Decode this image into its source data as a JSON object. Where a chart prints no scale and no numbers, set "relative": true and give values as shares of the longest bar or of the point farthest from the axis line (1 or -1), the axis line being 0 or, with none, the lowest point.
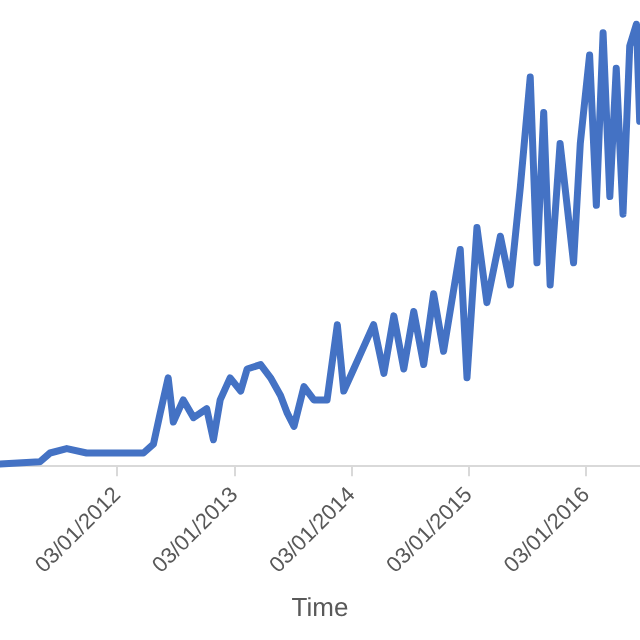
{
  "chart_data": {
    "type": "line",
    "relative": true,
    "xlabel": "Time",
    "grid": false,
    "legend": false,
    "marker": "none",
    "line_style": "solid",
    "xlim": [
      "2011-03-01",
      "2016-08-15"
    ],
    "xticks": [
      {
        "value": "2012-03-01",
        "label": "03/01/2012"
      },
      {
        "value": "2013-03-01",
        "label": "03/01/2013"
      },
      {
        "value": "2014-03-01",
        "label": "03/01/2014"
      },
      {
        "value": "2015-03-01",
        "label": "03/01/2015"
      },
      {
        "value": "2016-03-01",
        "label": "03/01/2016"
      }
    ],
    "x": [
      "2011-03-01",
      "2011-07-03",
      "2011-08-04",
      "2011-09-25",
      "2011-11-26",
      "2012-03-01",
      "2012-05-21",
      "2012-06-21",
      "2012-07-12",
      "2012-08-06",
      "2012-08-22",
      "2012-09-22",
      "2012-10-24",
      "2012-12-04",
      "2012-12-25",
      "2013-01-15",
      "2013-02-15",
      "2013-03-20",
      "2013-04-09",
      "2013-05-21",
      "2013-06-21",
      "2013-07-22",
      "2013-08-12",
      "2013-09-02",
      "2013-10-03",
      "2013-11-03",
      "2013-12-14",
      "2014-01-15",
      "2014-02-04",
      "2014-03-07",
      "2014-04-07",
      "2014-05-08",
      "2014-06-09",
      "2014-07-10",
      "2014-08-10",
      "2014-09-10",
      "2014-10-11",
      "2014-11-11",
      "2014-12-12",
      "2015-02-02",
      "2015-02-23",
      "2015-03-26",
      "2015-04-26",
      "2015-06-07",
      "2015-07-08",
      "2015-08-08",
      "2015-09-08",
      "2015-09-29",
      "2015-10-20",
      "2015-11-09",
      "2015-12-10",
      "2016-01-21",
      "2016-02-11",
      "2016-03-11",
      "2016-04-01",
      "2016-04-22",
      "2016-05-13",
      "2016-06-02",
      "2016-06-23",
      "2016-07-14",
      "2016-08-04",
      "2016-08-14"
    ],
    "series": [
      {
        "color": "#4472c4",
        "values": [
          0.005,
          0.01,
          0.03,
          0.04,
          0.03,
          0.03,
          0.03,
          0.05,
          0.12,
          0.2,
          0.1,
          0.15,
          0.11,
          0.13,
          0.06,
          0.15,
          0.2,
          0.17,
          0.22,
          0.23,
          0.2,
          0.16,
          0.12,
          0.09,
          0.18,
          0.15,
          0.15,
          0.32,
          0.17,
          0.22,
          0.27,
          0.32,
          0.21,
          0.34,
          0.22,
          0.35,
          0.23,
          0.39,
          0.26,
          0.49,
          0.2,
          0.54,
          0.37,
          0.52,
          0.41,
          0.63,
          0.88,
          0.46,
          0.8,
          0.41,
          0.73,
          0.46,
          0.73,
          0.93,
          0.59,
          0.98,
          0.61,
          0.9,
          0.57,
          0.95,
          1,
          0.78
        ]
      }
    ]
  }
}
